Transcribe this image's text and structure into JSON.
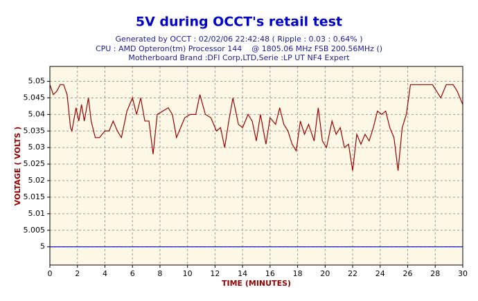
{
  "chart_data": {
    "type": "line",
    "title": "5V during OCCT's retail test",
    "subtitle": [
      "Generated by OCCT : 02/02/06 22:42:48 ( Ripple : 0.03 : 0.64% )",
      "CPU : AMD Opteron(tm) Processor 144    @ 1805.06 MHz FSB 200.56MHz ()",
      "Motherboard Brand :DFI Corp,LTD,Serie :LP UT NF4 Expert"
    ],
    "x_label": "TIME (MINUTES)",
    "y_label": "VOLTAGE ( VOLTS )",
    "x": [
      0,
      0.25,
      0.5,
      0.75,
      1.0,
      1.25,
      1.5,
      1.6,
      1.9,
      2.1,
      2.3,
      2.5,
      2.8,
      3.0,
      3.3,
      3.6,
      4.0,
      4.3,
      4.6,
      4.9,
      5.2,
      5.6,
      6.0,
      6.3,
      6.6,
      6.9,
      7.2,
      7.5,
      7.8,
      8.2,
      8.6,
      8.9,
      9.2,
      9.5,
      9.8,
      10.2,
      10.6,
      10.9,
      11.3,
      11.7,
      12.1,
      12.4,
      12.7,
      13.0,
      13.3,
      13.7,
      14.0,
      14.4,
      14.7,
      15.0,
      15.3,
      15.7,
      16.0,
      16.4,
      16.7,
      17.0,
      17.3,
      17.6,
      17.9,
      18.2,
      18.5,
      18.8,
      19.2,
      19.5,
      19.8,
      20.1,
      20.5,
      20.8,
      21.1,
      21.4,
      21.7,
      22.0,
      22.3,
      22.6,
      22.9,
      23.2,
      23.5,
      23.8,
      24.1,
      24.4,
      24.7,
      25.0,
      25.3,
      25.6,
      25.9,
      26.2,
      27.0,
      27.8,
      28.1,
      28.4,
      28.8,
      29.3,
      29.6,
      30.0
    ],
    "series": [
      {
        "color": "#990000",
        "values": [
          5.049,
          5.046,
          5.047,
          5.049,
          5.049,
          5.046,
          5.036,
          5.035,
          5.042,
          5.038,
          5.043,
          5.038,
          5.045,
          5.038,
          5.033,
          5.033,
          5.035,
          5.035,
          5.038,
          5.035,
          5.033,
          5.041,
          5.045,
          5.04,
          5.045,
          5.038,
          5.038,
          5.028,
          5.04,
          5.041,
          5.042,
          5.04,
          5.033,
          5.036,
          5.039,
          5.04,
          5.04,
          5.046,
          5.04,
          5.039,
          5.035,
          5.036,
          5.03,
          5.038,
          5.045,
          5.037,
          5.036,
          5.04,
          5.038,
          5.032,
          5.04,
          5.031,
          5.039,
          5.037,
          5.042,
          5.037,
          5.035,
          5.031,
          5.029,
          5.038,
          5.034,
          5.037,
          5.032,
          5.042,
          5.032,
          5.03,
          5.038,
          5.034,
          5.036,
          5.03,
          5.031,
          5.023,
          5.034,
          5.031,
          5.034,
          5.032,
          5.036,
          5.041,
          5.04,
          5.041,
          5.036,
          5.033,
          5.023,
          5.036,
          5.04,
          5.049,
          5.049,
          5.049,
          5.047,
          5.045,
          5.049,
          5.049,
          5.047,
          5.043
        ]
      }
    ],
    "reference_line": {
      "value": 5,
      "color": "#0000cc"
    },
    "xlim": [
      0,
      30
    ],
    "xticks": [
      0,
      2,
      4,
      6,
      8,
      10,
      12,
      14,
      16,
      18,
      20,
      22,
      24,
      26,
      28,
      30
    ],
    "ylim": [
      4.9945,
      5.0545
    ],
    "yticks": [
      5,
      5.005,
      5.01,
      5.015,
      5.02,
      5.025,
      5.03,
      5.035,
      5.04,
      5.045,
      5.05
    ],
    "grid": true
  }
}
